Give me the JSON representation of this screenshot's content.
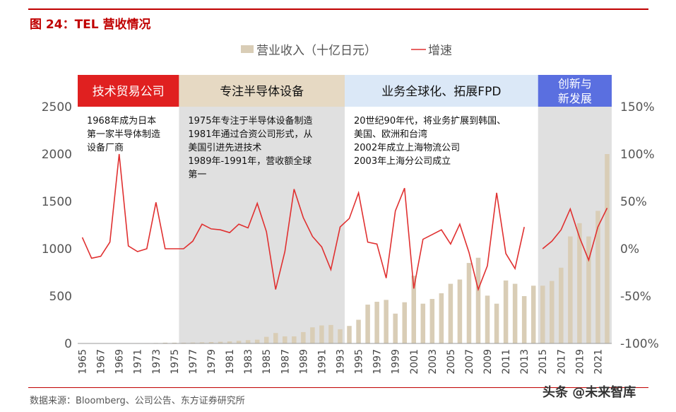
{
  "figure_title": "图 24：TEL 营收情况",
  "source": "数据来源：Bloomberg、公司公告、东方证券研究所",
  "watermark": "头条 @未来智库",
  "colors": {
    "bar": "#d9cdb6",
    "line": "#e03030",
    "red_band": "#e02020",
    "beige_band": "#e6d9c3",
    "blue_band": "#dbe8f7",
    "indigo_band": "#5a6fe0",
    "gray_band": "#e0e0e0"
  },
  "chart_data": {
    "type": "bar+line",
    "title": "",
    "legend": [
      {
        "name": "营业收入（十亿日元）",
        "type": "bar"
      },
      {
        "name": "增速",
        "type": "line"
      }
    ],
    "legend_placement": "top-center",
    "xlabel": "",
    "ylabel": "",
    "ylim": [
      0,
      2500
    ],
    "y_ticks": [
      0,
      500,
      1000,
      1500,
      2000,
      2500
    ],
    "y2lim": [
      -100,
      150
    ],
    "y2_ticks": [
      "-100%",
      "-50%",
      "0%",
      "50%",
      "100%",
      "150%"
    ],
    "x_tick_labels": [
      "1965",
      "1967",
      "1969",
      "1971",
      "1973",
      "1975",
      "1977",
      "1979",
      "1981",
      "1983",
      "1985",
      "1987",
      "1989",
      "1991",
      "1993",
      "1995",
      "1997",
      "1999",
      "2001",
      "2003",
      "2005",
      "2007",
      "2009",
      "2011",
      "2013",
      "2015",
      "2017",
      "2019",
      "2021"
    ],
    "x": [
      1965,
      1966,
      1967,
      1968,
      1969,
      1970,
      1971,
      1972,
      1973,
      1974,
      1975,
      1976,
      1977,
      1978,
      1979,
      1980,
      1981,
      1982,
      1983,
      1984,
      1985,
      1986,
      1987,
      1988,
      1989,
      1990,
      1991,
      1992,
      1993,
      1994,
      1995,
      1996,
      1997,
      1998,
      1999,
      2000,
      2001,
      2002,
      2003,
      2004,
      2005,
      2006,
      2007,
      2008,
      2009,
      2010,
      2011,
      2012,
      2013,
      2014,
      2015,
      2016,
      2017,
      2018,
      2019,
      2020,
      2021,
      2022
    ],
    "revenue": [
      0,
      0,
      1,
      1,
      1,
      3,
      4,
      4,
      5,
      8,
      8,
      8,
      10,
      12,
      15,
      18,
      22,
      28,
      35,
      40,
      70,
      110,
      75,
      75,
      120,
      170,
      190,
      195,
      150,
      185,
      250,
      410,
      440,
      460,
      315,
      435,
      715,
      420,
      470,
      530,
      630,
      675,
      850,
      905,
      505,
      420,
      665,
      630,
      500,
      610,
      610,
      660,
      800,
      1130,
      1270,
      1130,
      1400,
      2000
    ],
    "growth_pct": [
      12,
      -10,
      -8,
      7,
      100,
      3,
      -3,
      0,
      49,
      0,
      0,
      0,
      8,
      26,
      21,
      20,
      17,
      26,
      22,
      48,
      18,
      -43,
      -3,
      63,
      33,
      13,
      2,
      -22,
      23,
      32,
      59,
      7,
      5,
      -31,
      40,
      64,
      -42,
      10,
      15,
      20,
      5,
      26,
      -4,
      -43,
      -18,
      59,
      -5,
      -21,
      23,
      null,
      0,
      8,
      20,
      42,
      12,
      -12,
      23,
      43
    ],
    "phases": [
      {
        "label": "技术贸易公司",
        "start": 1964.5,
        "end": 1975.5,
        "note": [
          "1968年成为日本",
          "第一家半导体制造",
          "设备厂商"
        ]
      },
      {
        "label": "专注半导体设备",
        "start": 1975.5,
        "end": 1993.5,
        "note": [
          "1975年专注于半导体设备制造",
          "1981年通过合资公司形式，从",
          "美国引进先进技术",
          "1989年-1991年，营收额全球",
          "第一"
        ]
      },
      {
        "label": "业务全球化、拓展FPD",
        "start": 1993.5,
        "end": 2014.5,
        "note": [
          "20世纪90年代，将业务扩展到韩国、",
          "美国、欧洲和台湾",
          "2002年成立上海物流公司",
          "2003年上海分公司成立"
        ]
      },
      {
        "label_lines": [
          "创新与",
          "新发展"
        ],
        "start": 2014.5,
        "end": 2022.5,
        "note": []
      }
    ]
  }
}
